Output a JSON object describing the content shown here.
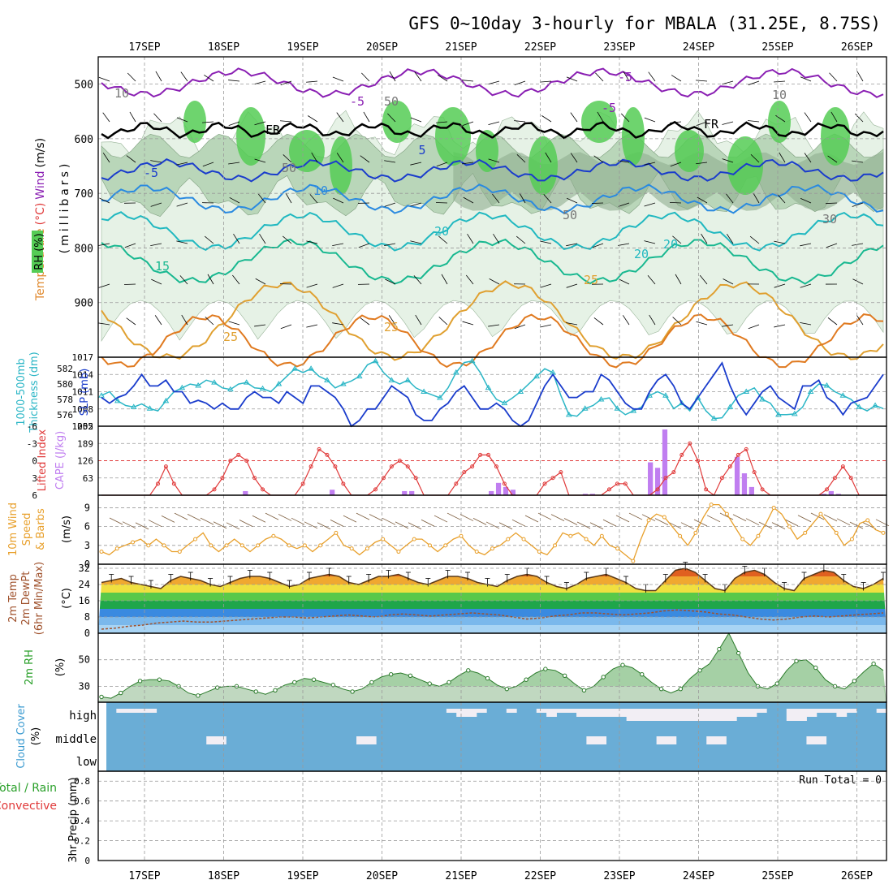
{
  "title": "GFS 0~10day 3-hourly for MBALA (31.25E, 8.75S)",
  "dates": [
    "17SEP",
    "18SEP",
    "19SEP",
    "20SEP",
    "21SEP",
    "22SEP",
    "23SEP",
    "24SEP",
    "25SEP",
    "26SEP"
  ],
  "colors": {
    "frame": "#000000",
    "grid": "#999999",
    "rh_light": "#e6f2e6",
    "rh_mid": "#b9d6b9",
    "rh_dark": "#8fae8f",
    "rh_green": "#55cc55",
    "slp": "#1a3ccc",
    "thickness": "#2bb6c6",
    "lifted_index": "#e03a3a",
    "cape": "#c07ef0",
    "wind10m": "#e8a02c",
    "cloud_bg": "#6aadd6",
    "cloud_white": "#f2eef4"
  },
  "chart_data": [
    {
      "id": "upper_air",
      "type": "contour",
      "ylabel": "(millibars)",
      "side_labels": [
        "Temperature",
        "(°C)",
        "Wind",
        "(m/s)",
        "RH",
        "(%)"
      ],
      "yticks": [
        500,
        600,
        700,
        800,
        900
      ],
      "ylim": [
        1000,
        450
      ],
      "contour_labels": [
        {
          "text": "-5"
        },
        {
          "text": "-5"
        },
        {
          "text": "-5"
        },
        {
          "text": "-5"
        },
        {
          "text": "5"
        },
        {
          "text": "10"
        },
        {
          "text": "20"
        },
        {
          "text": "15"
        },
        {
          "text": "20"
        },
        {
          "text": "20"
        },
        {
          "text": "25"
        },
        {
          "text": "25"
        },
        {
          "text": "25"
        },
        {
          "text": "FR"
        },
        {
          "text": "FR"
        },
        {
          "text": "10"
        },
        {
          "text": "50"
        },
        {
          "text": "50"
        },
        {
          "text": "30"
        },
        {
          "text": "50"
        },
        {
          "text": "10"
        }
      ]
    },
    {
      "id": "slp_thickness",
      "type": "line",
      "left_label": [
        "1000-500mb",
        "Thickness (dm)"
      ],
      "right_label": "SLP (mb)",
      "left_ticks": [
        576,
        578,
        580,
        582
      ],
      "right_ticks": [
        1005,
        1008,
        1011,
        1014,
        1017
      ],
      "series": [
        {
          "name": "SLP (mb)",
          "values": [
            1010,
            1009,
            1010,
            1010.5,
            1012,
            1014,
            1012,
            1012,
            1013,
            1011,
            1011,
            1009,
            1009.5,
            1009,
            1008,
            1009,
            1008,
            1008,
            1010,
            1011,
            1010,
            1010,
            1009,
            1011,
            1010,
            1009,
            1012,
            1012,
            1011,
            1010,
            1008,
            1005,
            1006,
            1008,
            1008,
            1010,
            1012,
            1011,
            1010,
            1007,
            1006,
            1006,
            1008,
            1009,
            1011,
            1012,
            1010,
            1008,
            1008,
            1009,
            1008,
            1006,
            1005,
            1006,
            1009,
            1012,
            1014,
            1012,
            1010,
            1010,
            1011,
            1011,
            1014,
            1013,
            1011,
            1009,
            1008,
            1008,
            1011,
            1013,
            1014,
            1012,
            1009,
            1008,
            1010,
            1012,
            1014,
            1016,
            1012,
            1009,
            1007,
            1009,
            1011,
            1012,
            1010,
            1009,
            1008,
            1012,
            1012,
            1013,
            1010,
            1009,
            1007,
            1009,
            1009.5,
            1010,
            1012,
            1014
          ]
        },
        {
          "name": "1000-500mb Thickness (dm)",
          "values": [
            578.5,
            579.0,
            577.8,
            577.2,
            577.0,
            577.4,
            576.8,
            576.5,
            577.8,
            579.0,
            579.5,
            580.0,
            579.8,
            580.5,
            580.2,
            579.5,
            579.3,
            580.0,
            580.2,
            579.5,
            579.4,
            579.0,
            580.0,
            581.0,
            582.0,
            581.5,
            582.0,
            581.0,
            580.5,
            579.5,
            580.0,
            580.4,
            581.0,
            582.5,
            583.0,
            581.5,
            580.5,
            580.0,
            580.5,
            579.5,
            579.0,
            578.6,
            578.2,
            579.5,
            581.5,
            582.8,
            583.0,
            581.5,
            579.5,
            578.0,
            577.5,
            578.2,
            579.0,
            580.0,
            581.0,
            582.0,
            581.5,
            578.5,
            576.0,
            575.8,
            576.8,
            577.2,
            578.0,
            578.2,
            576.8,
            576.0,
            576.5,
            577.0,
            578.5,
            579.0,
            578.5,
            576.8,
            577.5,
            576.5,
            578.2,
            576.5,
            575.5,
            575.6,
            577.0,
            578.5,
            579.0,
            579.5,
            578.0,
            577.5,
            576.0,
            576.0,
            576.1,
            577.0,
            579.0,
            580.0,
            579.8,
            579.0,
            578.5,
            578.0,
            577.0,
            576.5,
            577.2,
            576.8
          ]
        }
      ]
    },
    {
      "id": "li_cape",
      "type": "line+bar",
      "left_label": "Lifted Index",
      "right_label": "CAPE (J/kg)",
      "left_ticks": [
        "-6",
        "-3",
        "0",
        "3",
        "6"
      ],
      "right_ticks": [
        "63",
        "126",
        "189",
        "252"
      ],
      "series": [
        {
          "name": "Lifted Index",
          "values": [
            7,
            7,
            7,
            7,
            7,
            7,
            6,
            4,
            1,
            4,
            6,
            7,
            7,
            7,
            5,
            3,
            0,
            -1,
            0,
            3,
            5,
            7,
            7,
            7,
            6,
            4,
            1,
            -2,
            -1,
            1,
            4,
            7,
            7,
            7,
            5,
            3,
            1,
            0,
            1,
            3,
            6,
            7,
            7,
            7,
            4,
            2,
            1,
            -1,
            -1,
            1,
            4,
            7,
            7,
            7,
            6,
            4,
            3,
            2,
            6,
            7,
            7,
            7,
            6,
            5,
            4,
            4,
            6,
            7,
            7,
            5,
            3,
            2,
            -1,
            -3,
            0,
            5,
            7,
            3,
            1,
            -1,
            -2,
            2,
            5,
            7,
            7,
            7,
            7,
            7,
            7,
            6,
            5,
            3,
            1,
            3,
            6,
            7,
            7,
            6
          ]
        },
        {
          "name": "CAPE (J/kg)",
          "values": [
            0,
            0,
            0,
            0,
            0,
            0,
            0,
            0,
            0,
            0,
            0,
            0,
            0,
            0,
            0,
            0,
            0,
            0,
            0,
            0,
            15,
            0,
            0,
            0,
            0,
            0,
            0,
            0,
            0,
            0,
            0,
            0,
            20,
            0,
            0,
            0,
            0,
            0,
            0,
            0,
            0,
            0,
            15,
            15,
            0,
            0,
            0,
            0,
            0,
            0,
            0,
            0,
            0,
            0,
            15,
            45,
            30,
            20,
            0,
            0,
            0,
            0,
            0,
            0,
            0,
            0,
            0,
            5,
            5,
            0,
            0,
            0,
            0,
            0,
            0,
            0,
            120,
            100,
            240,
            0,
            0,
            0,
            0,
            0,
            0,
            0,
            0,
            0,
            140,
            80,
            30,
            0,
            0,
            0,
            0,
            0,
            0,
            0,
            0,
            0,
            5,
            15,
            5,
            0,
            0,
            0,
            0,
            0,
            0
          ]
        }
      ]
    },
    {
      "id": "wind10m",
      "type": "line",
      "left_label": [
        "10m Wind",
        "Speed",
        "& Barbs"
      ],
      "unit": "(m/s)",
      "yticks": [
        0,
        3,
        6,
        9
      ],
      "series": [
        {
          "name": "10m Wind Speed",
          "values": [
            2,
            1.5,
            2.5,
            3,
            3.5,
            4,
            3,
            4,
            3,
            2,
            2,
            3,
            4,
            5,
            3,
            2,
            3,
            4,
            3,
            2,
            3,
            4,
            4.5,
            4,
            3,
            2.5,
            3,
            2,
            3,
            4,
            5,
            3,
            2.5,
            1.5,
            2.5,
            3.5,
            4,
            3,
            2,
            3,
            4,
            4,
            3,
            2,
            3,
            4,
            4.5,
            3,
            2,
            1.5,
            2.5,
            3,
            4,
            5,
            4,
            3,
            2,
            1.5,
            3,
            5,
            4.5,
            5,
            4,
            3,
            4.5,
            3,
            2.5,
            1.5,
            0.5,
            4,
            7,
            8,
            7.5,
            6,
            4.5,
            3,
            5,
            7.5,
            9.5,
            9.5,
            8,
            6,
            4,
            3,
            4.5,
            6.5,
            9,
            8,
            6,
            4,
            5,
            6.5,
            8,
            6.5,
            5,
            3,
            4,
            6.5,
            7,
            5.5,
            5
          ]
        }
      ]
    },
    {
      "id": "temp2m",
      "type": "area",
      "left_label": [
        "2m Temp",
        "2m DewPt",
        "(6hr Min/Max)"
      ],
      "unit": "(°C)",
      "yticks": [
        0,
        8,
        16,
        24,
        32
      ],
      "series": [
        {
          "name": "2m Temp",
          "values": [
            25,
            26,
            27,
            25,
            24,
            23,
            22,
            26,
            28,
            27,
            26,
            24,
            23,
            25,
            27,
            28,
            28,
            27,
            25,
            23,
            24,
            27,
            28,
            29,
            28,
            25,
            24,
            26,
            28,
            28,
            29,
            27,
            25,
            24,
            26,
            28,
            28,
            27,
            25,
            24,
            23,
            26,
            28,
            29,
            28,
            25,
            23,
            22,
            24,
            27,
            28,
            29,
            27,
            25,
            22,
            21,
            21,
            26,
            31,
            32,
            30,
            26,
            22,
            21,
            27,
            30,
            31,
            29,
            25,
            22,
            21,
            27,
            29,
            31,
            30,
            26,
            23,
            22,
            24,
            27
          ]
        },
        {
          "name": "2m DewPt",
          "values": [
            2,
            2.5,
            3.5,
            4,
            5,
            5.5,
            6,
            5.5,
            5.5,
            6,
            6.5,
            7,
            7.5,
            8,
            8,
            7.5,
            8,
            8.5,
            9,
            8.5,
            8,
            9,
            9.5,
            9,
            8.5,
            9,
            9.5,
            10,
            9.5,
            9,
            8,
            7,
            7.5,
            8.5,
            9,
            10,
            10,
            9.5,
            9,
            9.5,
            10,
            11,
            11.5,
            11,
            10.5,
            9.5,
            9,
            8,
            7,
            6.5,
            7,
            8,
            8.5,
            8,
            8.5,
            9,
            9.5,
            10
          ]
        }
      ]
    },
    {
      "id": "rh2m",
      "type": "area",
      "left_label": "2m RH",
      "unit": "(%)",
      "yticks": [
        30,
        50
      ],
      "series": [
        {
          "name": "2m RH",
          "values": [
            22,
            21,
            25,
            30,
            34,
            35,
            35,
            34,
            30,
            25,
            23,
            26,
            29,
            30,
            30,
            28,
            26,
            24,
            27,
            31,
            33,
            36,
            35,
            33,
            31,
            28,
            26,
            28,
            33,
            37,
            39,
            40,
            38,
            35,
            32,
            30,
            33,
            38,
            42,
            40,
            36,
            31,
            28,
            30,
            35,
            40,
            43,
            42,
            38,
            32,
            27,
            30,
            37,
            43,
            46,
            44,
            39,
            33,
            28,
            25,
            28,
            36,
            42,
            47,
            58,
            70,
            55,
            40,
            30,
            28,
            32,
            42,
            49,
            50,
            44,
            35,
            30,
            28,
            34,
            41,
            47,
            42
          ]
        }
      ]
    },
    {
      "id": "cloud",
      "type": "bar",
      "left_label": [
        "Cloud Cover",
        "(%)"
      ],
      "levels": [
        "high",
        "middle",
        "low"
      ]
    },
    {
      "id": "precip",
      "type": "bar",
      "left_label_green": "Total / Rain",
      "left_label_red": "Convective",
      "ylabel": "3hr Precip (mm)",
      "yticks": [
        "0",
        "0.2",
        "0.4",
        "0.6",
        "0.8"
      ],
      "run_total": "Run Total = 0"
    }
  ]
}
